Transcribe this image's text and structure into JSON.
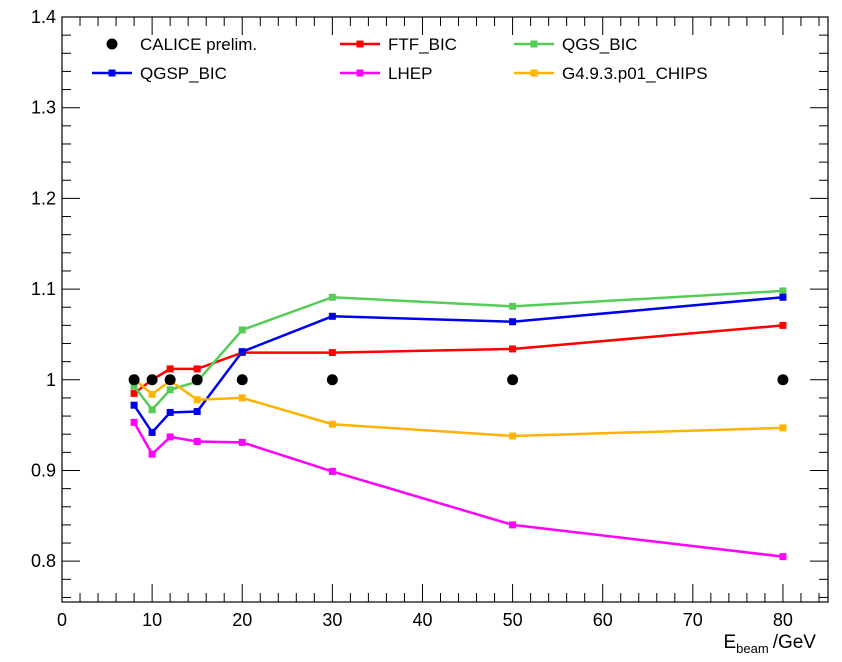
{
  "chart_data": {
    "type": "line",
    "title": "",
    "xlabel": {
      "main": "E",
      "sub": "beam",
      "unit": "/GeV"
    },
    "ylabel": "",
    "xlim": [
      0,
      85
    ],
    "ylim": [
      0.755,
      1.4
    ],
    "x_ticks": [
      0,
      10,
      20,
      30,
      40,
      50,
      60,
      70,
      80
    ],
    "y_ticks": [
      0.8,
      0.9,
      1,
      1.1,
      1.2,
      1.3,
      1.4
    ],
    "grid": false,
    "legend_placement": "top",
    "x": [
      8,
      10,
      12,
      15,
      20,
      30,
      50,
      80
    ],
    "series": [
      {
        "name": "CALICE prelim.",
        "color": "#000000",
        "style": "points",
        "values": [
          1.0,
          1.0,
          1.0,
          1.0,
          1.0,
          1.0,
          1.0,
          1.0
        ]
      },
      {
        "name": "FTF_BIC",
        "color": "#ff0000",
        "style": "line",
        "values": [
          0.985,
          1.0,
          1.012,
          1.012,
          1.03,
          1.03,
          1.034,
          1.06
        ]
      },
      {
        "name": "QGS_BIC",
        "color": "#55cc55",
        "style": "line",
        "values": [
          0.993,
          0.967,
          0.989,
          0.998,
          1.055,
          1.091,
          1.081,
          1.098
        ]
      },
      {
        "name": "QGSP_BIC",
        "color": "#0000ee",
        "style": "line",
        "values": [
          0.972,
          0.942,
          0.964,
          0.965,
          1.031,
          1.07,
          1.064,
          1.091
        ]
      },
      {
        "name": "LHEP",
        "color": "#ff00ff",
        "style": "line",
        "values": [
          0.953,
          0.918,
          0.937,
          0.932,
          0.931,
          0.899,
          0.84,
          0.805
        ]
      },
      {
        "name": "G4.9.3.p01_CHIPS",
        "color": "#ffb300",
        "style": "line",
        "values": [
          1.001,
          0.984,
          0.999,
          0.978,
          0.98,
          0.951,
          0.938,
          0.947
        ]
      }
    ]
  }
}
